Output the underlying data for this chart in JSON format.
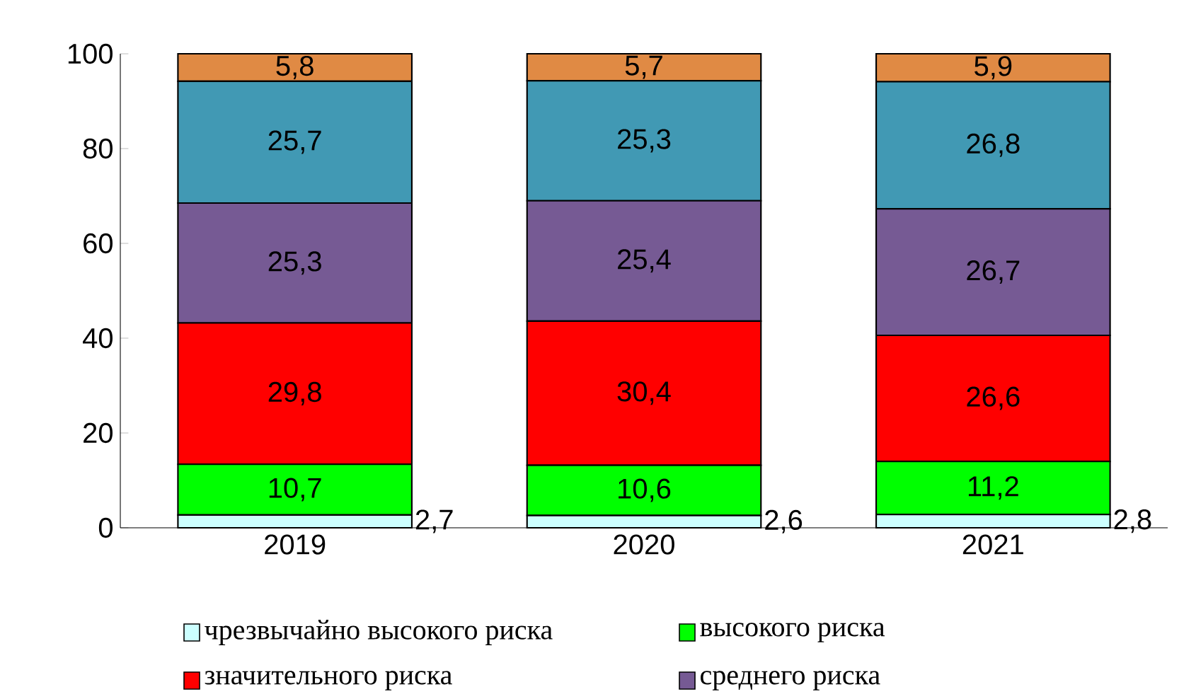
{
  "chart_data": {
    "type": "bar",
    "stacked": true,
    "categories": [
      "2019",
      "2020",
      "2021"
    ],
    "series": [
      {
        "name": "чрезвычайно высокого риска",
        "color": "#ccffff",
        "values": [
          2.7,
          2.6,
          2.8
        ],
        "value_labels": [
          "2,7",
          "2,6",
          "2,8"
        ]
      },
      {
        "name": "высокого риска",
        "color": "#00ff00",
        "values": [
          10.7,
          10.6,
          11.2
        ],
        "value_labels": [
          "10,7",
          "10,6",
          "11,2"
        ]
      },
      {
        "name": "значительного риска",
        "color": "#ff0000",
        "values": [
          29.8,
          30.4,
          26.6
        ],
        "value_labels": [
          "29,8",
          "30,4",
          "26,6"
        ]
      },
      {
        "name": "среднего риска",
        "color": "#765a94",
        "values": [
          25.3,
          25.4,
          26.7
        ],
        "value_labels": [
          "25,3",
          "25,4",
          "26,7"
        ]
      },
      {
        "color": "#4199b4",
        "values": [
          25.7,
          25.3,
          26.8
        ],
        "value_labels": [
          "25,7",
          "25,3",
          "26,8"
        ]
      },
      {
        "color": "#e08a44",
        "values": [
          5.8,
          5.7,
          5.9
        ],
        "value_labels": [
          "5,8",
          "5,7",
          "5,9"
        ]
      }
    ],
    "ylim": [
      0,
      100
    ],
    "yticks": [
      0,
      20,
      40,
      60,
      80,
      100
    ],
    "legend": "bottom",
    "grid": false
  }
}
